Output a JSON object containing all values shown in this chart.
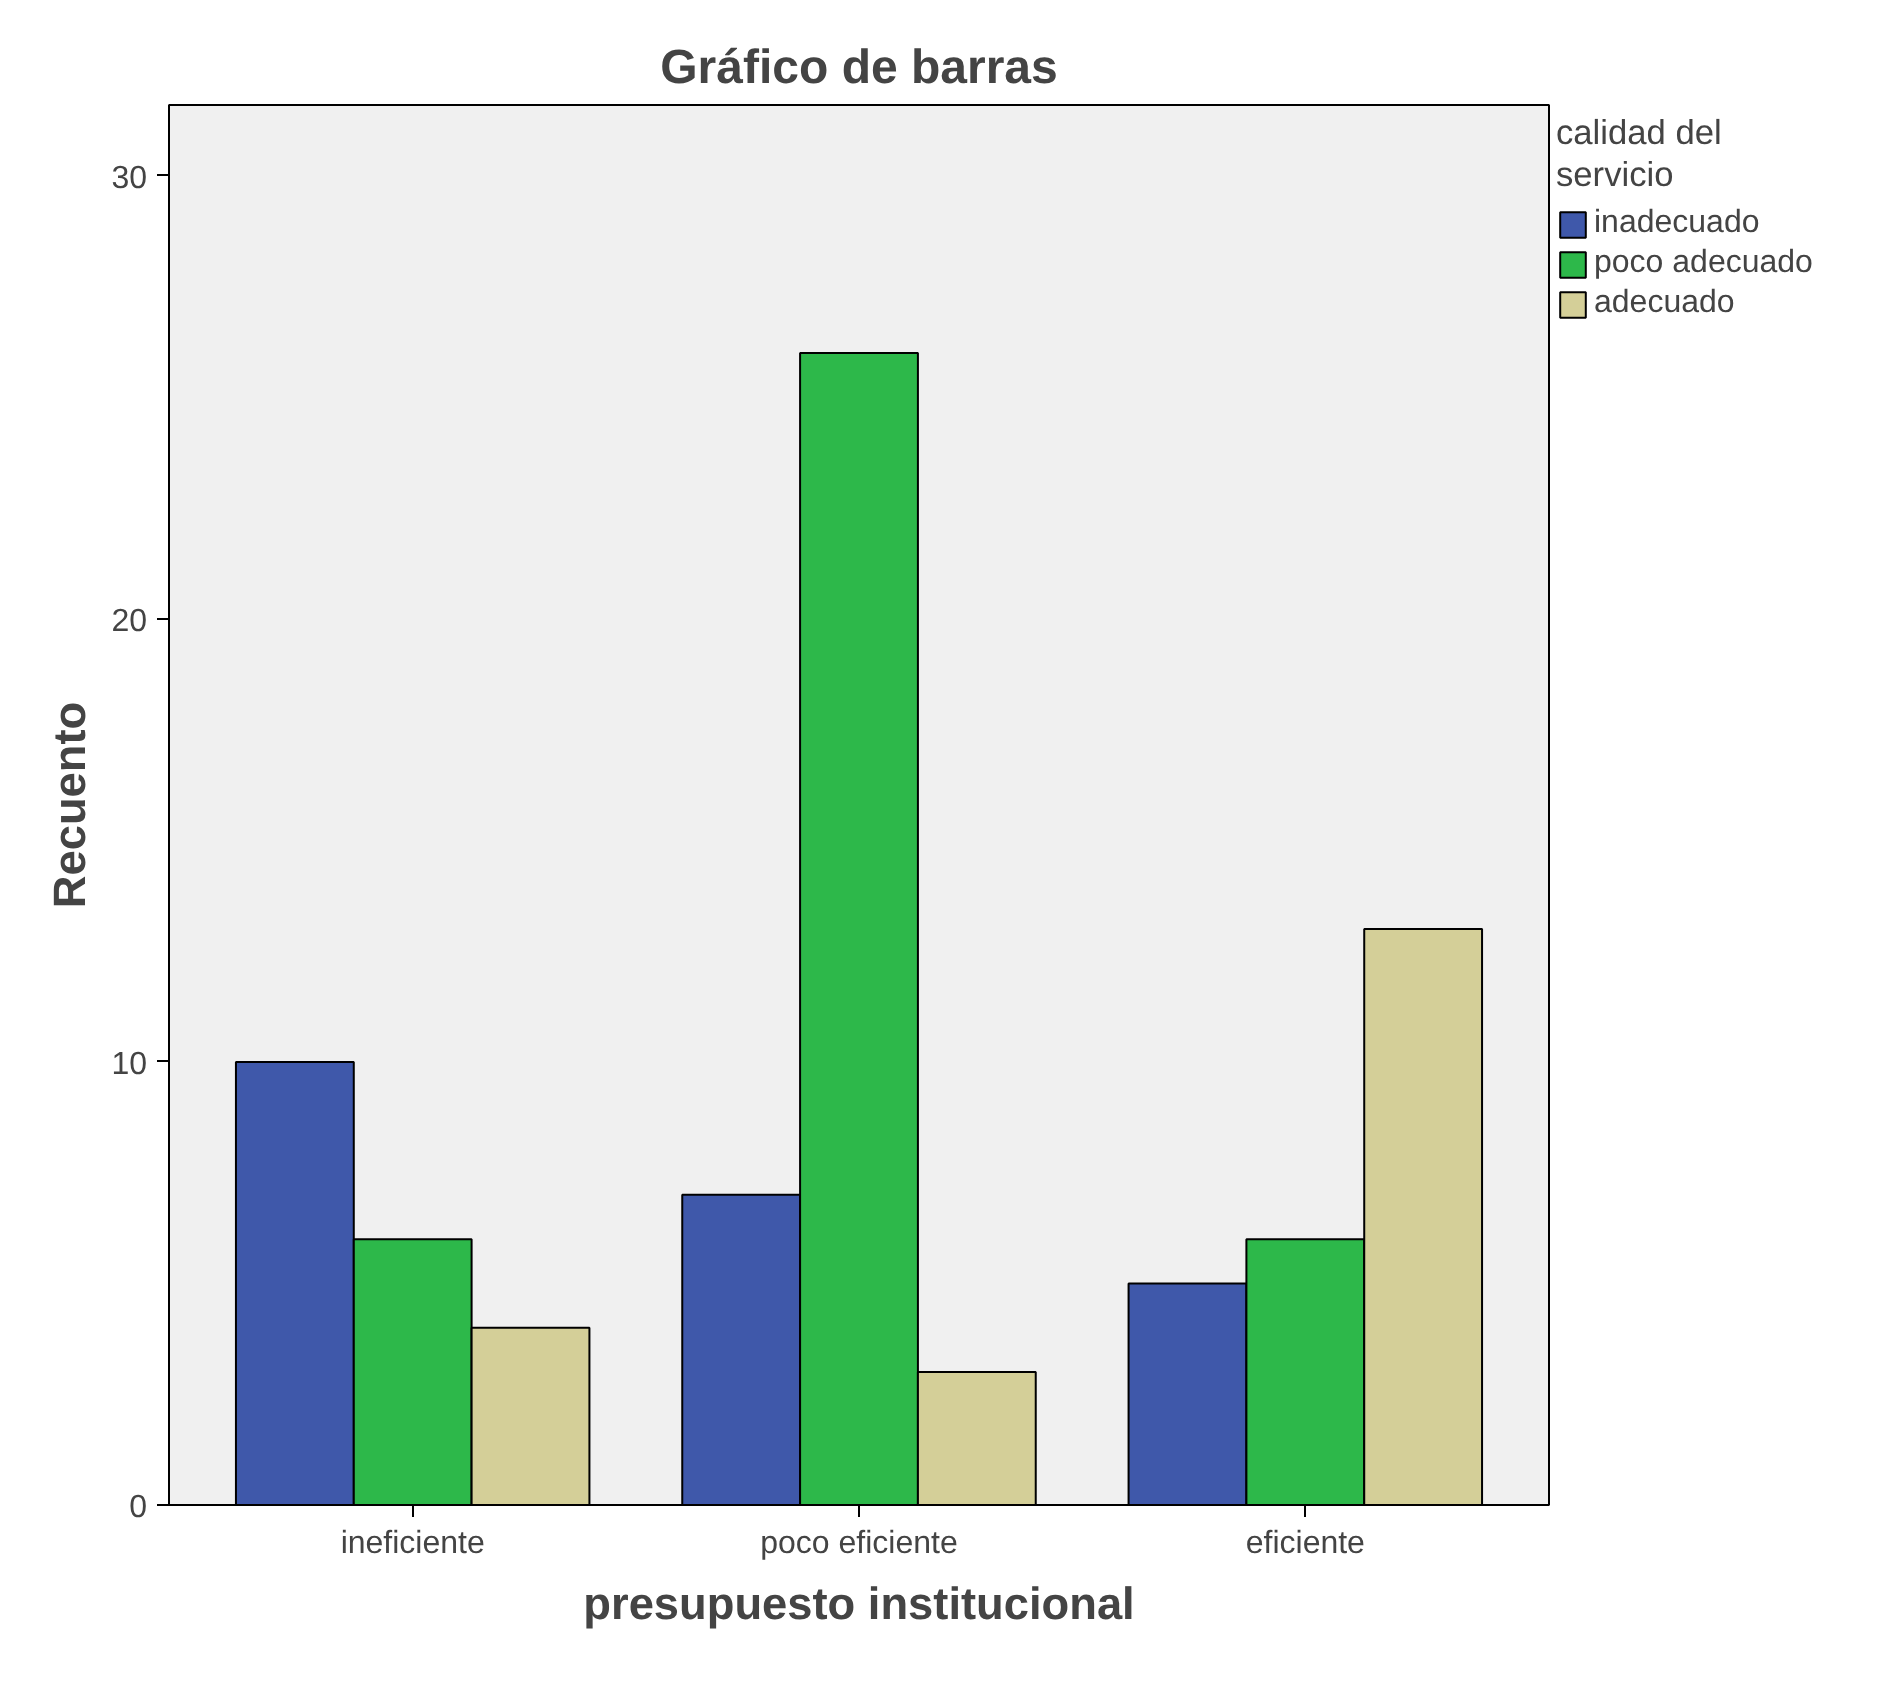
{
  "chart_data": {
    "type": "bar",
    "title": "Gráfico de barras",
    "xlabel": "presupuesto institucional",
    "ylabel": "Recuento",
    "legend_title": "calidad del servicio",
    "categories": [
      "ineficiente",
      "poco eficiente",
      "eficiente"
    ],
    "series": [
      {
        "name": "inadecuado",
        "color": "#3f58aa",
        "values": [
          10,
          7,
          5
        ]
      },
      {
        "name": "poco adecuado",
        "color": "#2db84a",
        "values": [
          6,
          26,
          6
        ]
      },
      {
        "name": "adecuado",
        "color": "#d4cf98",
        "values": [
          4,
          3,
          13
        ]
      }
    ],
    "ylim": [
      0,
      31.6
    ],
    "yticks": [
      0,
      10,
      20,
      30
    ],
    "grid": false,
    "legend": "right"
  }
}
